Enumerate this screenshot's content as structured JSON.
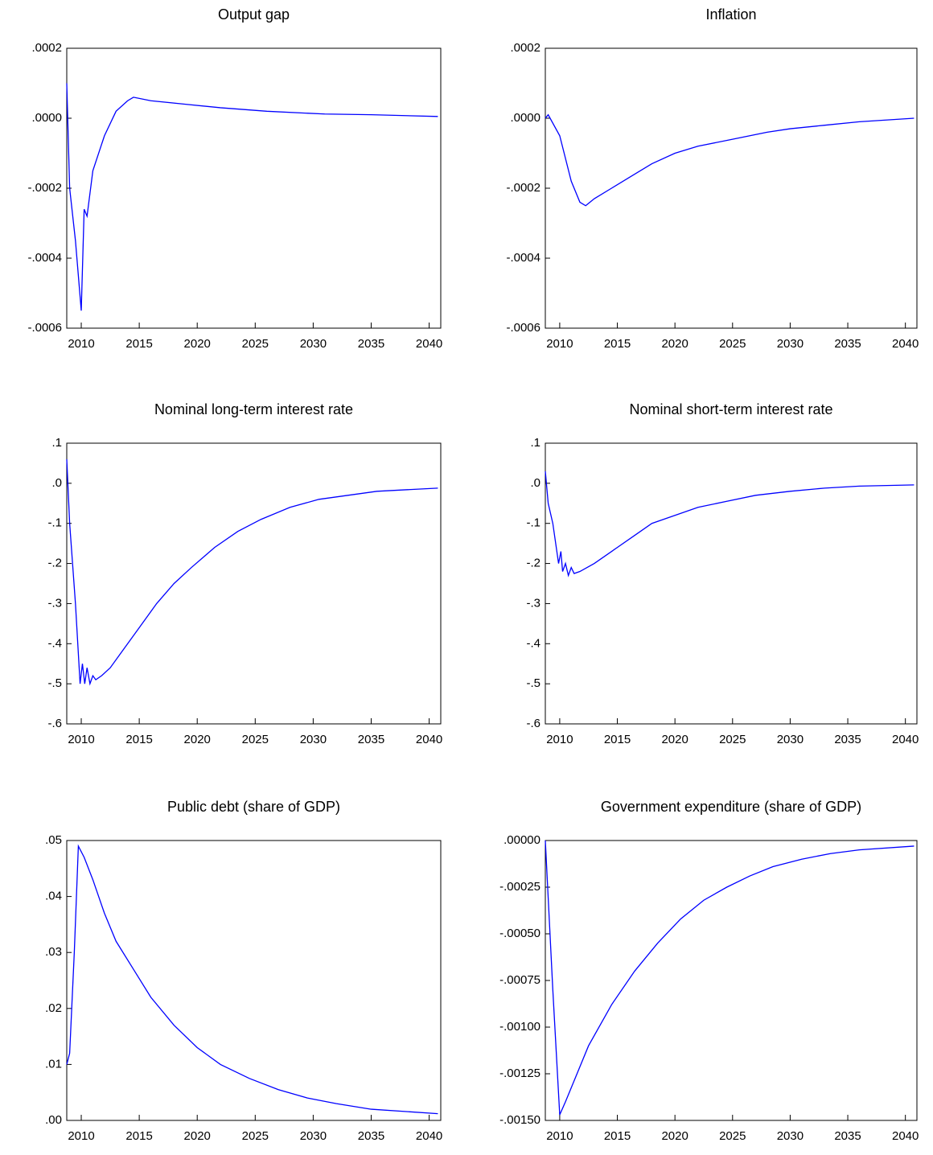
{
  "chart_data": [
    {
      "type": "line",
      "title": "Output gap",
      "color": "#0000ff",
      "x": [
        2008.75,
        2009,
        2009.5,
        2010,
        2010.25,
        2010.5,
        2011,
        2012,
        2013,
        2014,
        2014.5,
        2016,
        2019,
        2022,
        2026,
        2031,
        2035,
        2040.75
      ],
      "values": [
        0.0001,
        -0.0002,
        -0.00035,
        -0.00055,
        -0.00026,
        -0.00028,
        -0.00015,
        -5e-05,
        2e-05,
        5e-05,
        6e-05,
        5e-05,
        4e-05,
        3e-05,
        2e-05,
        1.2e-05,
        1e-05,
        5e-06
      ],
      "xlim": [
        2008.75,
        2041
      ],
      "xticks": [
        2010,
        2015,
        2020,
        2025,
        2030,
        2035,
        2040
      ],
      "ylim": [
        -0.0006,
        0.0002
      ],
      "yticks": [
        {
          "value": -0.0006,
          "label": "-.0006"
        },
        {
          "value": -0.0004,
          "label": "-.0004"
        },
        {
          "value": -0.0002,
          "label": "-.0002"
        },
        {
          "value": 0,
          "label": ".0000"
        },
        {
          "value": 0.0002,
          "label": ".0002"
        }
      ]
    },
    {
      "type": "line",
      "title": "Inflation",
      "color": "#0000ff",
      "x": [
        2008.75,
        2009,
        2010,
        2011,
        2011.75,
        2012.25,
        2013,
        2014.5,
        2016.5,
        2018,
        2020,
        2022,
        2025,
        2028,
        2030,
        2033,
        2036,
        2040.75
      ],
      "values": [
        0,
        1e-05,
        -5e-05,
        -0.00018,
        -0.00024,
        -0.00025,
        -0.00023,
        -0.0002,
        -0.00016,
        -0.00013,
        -0.0001,
        -8e-05,
        -6e-05,
        -4e-05,
        -3e-05,
        -2e-05,
        -1e-05,
        0
      ],
      "xlim": [
        2008.75,
        2041
      ],
      "xticks": [
        2010,
        2015,
        2020,
        2025,
        2030,
        2035,
        2040
      ],
      "ylim": [
        -0.0006,
        0.0002
      ],
      "yticks": [
        {
          "value": -0.0006,
          "label": "-.0006"
        },
        {
          "value": -0.0004,
          "label": "-.0004"
        },
        {
          "value": -0.0002,
          "label": "-.0002"
        },
        {
          "value": 0,
          "label": ".0000"
        },
        {
          "value": 0.0002,
          "label": ".0002"
        }
      ]
    },
    {
      "type": "line",
      "title": "Nominal long-term interest rate",
      "color": "#0000ff",
      "x": [
        2008.75,
        2009,
        2009.5,
        2009.9,
        2010.1,
        2010.3,
        2010.5,
        2010.75,
        2011,
        2011.25,
        2011.75,
        2012.5,
        2013.5,
        2015,
        2016.5,
        2018,
        2019.5,
        2021.5,
        2023.5,
        2025.5,
        2028,
        2030.5,
        2033,
        2035.5,
        2040.75
      ],
      "values": [
        0.06,
        -0.1,
        -0.3,
        -0.5,
        -0.45,
        -0.5,
        -0.46,
        -0.5,
        -0.48,
        -0.49,
        -0.48,
        -0.46,
        -0.42,
        -0.36,
        -0.3,
        -0.25,
        -0.21,
        -0.16,
        -0.12,
        -0.09,
        -0.06,
        -0.04,
        -0.03,
        -0.02,
        -0.012
      ],
      "xlim": [
        2008.75,
        2041
      ],
      "xticks": [
        2010,
        2015,
        2020,
        2025,
        2030,
        2035,
        2040
      ],
      "ylim": [
        -0.6,
        0.1
      ],
      "yticks": [
        {
          "value": -0.6,
          "label": "-.6"
        },
        {
          "value": -0.5,
          "label": "-.5"
        },
        {
          "value": -0.4,
          "label": "-.4"
        },
        {
          "value": -0.3,
          "label": "-.3"
        },
        {
          "value": -0.2,
          "label": "-.2"
        },
        {
          "value": -0.1,
          "label": "-.1"
        },
        {
          "value": 0,
          "label": ".0"
        },
        {
          "value": 0.1,
          "label": ".1"
        }
      ]
    },
    {
      "type": "line",
      "title": "Nominal short-term interest rate",
      "color": "#0000ff",
      "x": [
        2008.75,
        2009,
        2009.4,
        2009.9,
        2010.1,
        2010.25,
        2010.5,
        2010.75,
        2011,
        2011.25,
        2011.75,
        2013,
        2015,
        2016.5,
        2018,
        2020,
        2022,
        2024.5,
        2027,
        2030,
        2033,
        2036,
        2040.75
      ],
      "values": [
        0.03,
        -0.05,
        -0.1,
        -0.2,
        -0.17,
        -0.22,
        -0.2,
        -0.23,
        -0.21,
        -0.225,
        -0.22,
        -0.2,
        -0.16,
        -0.13,
        -0.1,
        -0.08,
        -0.06,
        -0.045,
        -0.03,
        -0.02,
        -0.012,
        -0.007,
        -0.004
      ],
      "xlim": [
        2008.75,
        2041
      ],
      "xticks": [
        2010,
        2015,
        2020,
        2025,
        2030,
        2035,
        2040
      ],
      "ylim": [
        -0.6,
        0.1
      ],
      "yticks": [
        {
          "value": -0.6,
          "label": "-.6"
        },
        {
          "value": -0.5,
          "label": "-.5"
        },
        {
          "value": -0.4,
          "label": "-.4"
        },
        {
          "value": -0.3,
          "label": "-.3"
        },
        {
          "value": -0.2,
          "label": "-.2"
        },
        {
          "value": -0.1,
          "label": "-.1"
        },
        {
          "value": 0,
          "label": ".0"
        },
        {
          "value": 0.1,
          "label": ".1"
        }
      ]
    },
    {
      "type": "line",
      "title": "Public debt (share of GDP)",
      "color": "#0000ff",
      "x": [
        2008.75,
        2009,
        2009.4,
        2009.75,
        2010.25,
        2011,
        2012,
        2013,
        2014.5,
        2016,
        2018,
        2020,
        2022,
        2024.5,
        2027,
        2029.5,
        2032,
        2035,
        2040.75
      ],
      "values": [
        0.01,
        0.012,
        0.03,
        0.049,
        0.047,
        0.043,
        0.037,
        0.032,
        0.027,
        0.022,
        0.017,
        0.013,
        0.01,
        0.0075,
        0.0055,
        0.004,
        0.003,
        0.002,
        0.0012
      ],
      "xlim": [
        2008.75,
        2041
      ],
      "xticks": [
        2010,
        2015,
        2020,
        2025,
        2030,
        2035,
        2040
      ],
      "ylim": [
        0,
        0.05
      ],
      "yticks": [
        {
          "value": 0,
          "label": ".00"
        },
        {
          "value": 0.01,
          "label": ".01"
        },
        {
          "value": 0.02,
          "label": ".02"
        },
        {
          "value": 0.03,
          "label": ".03"
        },
        {
          "value": 0.04,
          "label": ".04"
        },
        {
          "value": 0.05,
          "label": ".05"
        }
      ]
    },
    {
      "type": "line",
      "title": "Government expenditure (share of GDP)",
      "color": "#0000ff",
      "x": [
        2008.75,
        2009.4,
        2010,
        2010.5,
        2011.5,
        2012.5,
        2014.5,
        2016.5,
        2018.5,
        2020.5,
        2022.5,
        2024.5,
        2026.5,
        2028.5,
        2031,
        2033.5,
        2036,
        2040.75
      ],
      "values": [
        0,
        -0.0008,
        -0.00147,
        -0.0014,
        -0.00125,
        -0.0011,
        -0.00088,
        -0.0007,
        -0.00055,
        -0.00042,
        -0.00032,
        -0.00025,
        -0.00019,
        -0.00014,
        -0.0001,
        -7e-05,
        -5e-05,
        -3e-05
      ],
      "xlim": [
        2008.75,
        2041
      ],
      "xticks": [
        2010,
        2015,
        2020,
        2025,
        2030,
        2035,
        2040
      ],
      "ylim": [
        -0.0015,
        0
      ],
      "yticks": [
        {
          "value": -0.0015,
          "label": "-.00150"
        },
        {
          "value": -0.00125,
          "label": "-.00125"
        },
        {
          "value": -0.001,
          "label": "-.00100"
        },
        {
          "value": -0.00075,
          "label": "-.00075"
        },
        {
          "value": -0.0005,
          "label": "-.00050"
        },
        {
          "value": -0.00025,
          "label": "-.00025"
        },
        {
          "value": 0,
          "label": ".00000"
        }
      ]
    }
  ]
}
